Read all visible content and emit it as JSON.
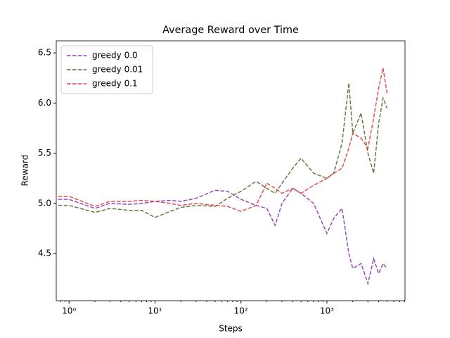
{
  "chart_data": {
    "type": "line",
    "title": "Average Reward over Time",
    "x_label": "Steps",
    "y_label": "Reward",
    "x": [
      0.75,
      1,
      2,
      3,
      5,
      7,
      10,
      15,
      20,
      30,
      50,
      70,
      100,
      150,
      200,
      250,
      300,
      400,
      500,
      700,
      1000,
      1200,
      1500,
      1800,
      2000,
      2500,
      3000,
      3500,
      4000,
      4500,
      5000
    ],
    "series": [
      {
        "name": "greedy 0.0",
        "color": "#8e35b8",
        "values": [
          5.04,
          5.04,
          4.95,
          5.0,
          4.99,
          5.0,
          5.02,
          5.03,
          5.02,
          5.05,
          5.13,
          5.12,
          5.04,
          4.98,
          4.95,
          4.78,
          5.0,
          5.15,
          5.1,
          5.0,
          4.7,
          4.85,
          4.95,
          4.5,
          4.35,
          4.4,
          4.2,
          4.45,
          4.3,
          4.4,
          4.35
        ]
      },
      {
        "name": "greedy 0.01",
        "color": "#556b2f",
        "values": [
          4.98,
          4.98,
          4.91,
          4.95,
          4.93,
          4.93,
          4.86,
          4.92,
          4.96,
          4.98,
          4.97,
          5.05,
          5.12,
          5.22,
          5.15,
          5.1,
          5.2,
          5.35,
          5.45,
          5.3,
          5.25,
          5.3,
          5.6,
          6.2,
          5.7,
          5.9,
          5.5,
          5.3,
          5.8,
          6.05,
          5.95
        ]
      },
      {
        "name": "greedy 0.1",
        "color": "#e8383b",
        "values": [
          5.07,
          5.07,
          4.97,
          5.02,
          5.02,
          5.03,
          5.02,
          5.0,
          4.98,
          5.0,
          4.98,
          4.97,
          4.92,
          4.98,
          5.2,
          5.15,
          5.1,
          5.15,
          5.1,
          5.18,
          5.25,
          5.3,
          5.35,
          5.55,
          5.7,
          5.65,
          5.55,
          5.85,
          6.15,
          6.35,
          6.1
        ]
      }
    ],
    "x_scale": "log",
    "xlim": [
      0.71,
      8100
    ],
    "ylim": [
      4.03,
      6.62
    ],
    "xticks": [
      {
        "value": 1,
        "label": "10⁰"
      },
      {
        "value": 10,
        "label": "10¹"
      },
      {
        "value": 100,
        "label": "10²"
      },
      {
        "value": 1000,
        "label": "10³"
      }
    ],
    "yticks": [
      4.5,
      {
        "value": 5,
        "label": "5.0"
      },
      5.5,
      {
        "value": 6,
        "label": "6.0"
      },
      6.5
    ],
    "legend_position": "upper-left",
    "grid": false
  }
}
